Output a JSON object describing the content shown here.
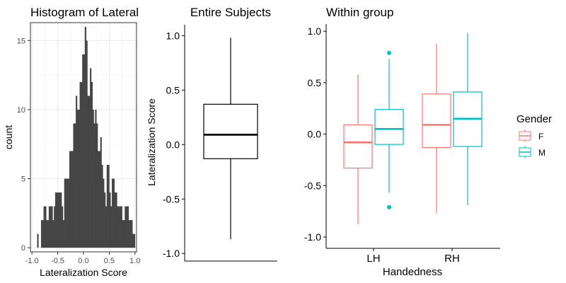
{
  "colors": {
    "histogram_fill": "#454545",
    "female": "#F8766D",
    "male": "#00BFC4",
    "axis": "#000000",
    "grid_major": "#EBEBEB",
    "grid_minor": "#F5F5F5"
  },
  "chart_data": [
    {
      "type": "bar",
      "subtype": "histogram",
      "title": "Histogram of Lateral",
      "xlabel": "Lateralization Score",
      "ylabel": "count",
      "xlim": [
        -1.03,
        1.03
      ],
      "ylim": [
        -0.3,
        16.3
      ],
      "xticks": [
        -1.0,
        -0.5,
        0.0,
        0.5,
        1.0
      ],
      "xtick_labels": [
        "-1.0",
        "-0.5",
        "0.0",
        "0.5",
        "1.0"
      ],
      "yticks": [
        0,
        5,
        10,
        15
      ],
      "ytick_labels": [
        "0",
        "5",
        "10",
        "15"
      ],
      "grid": true,
      "bins": [
        [
          -0.9,
          -0.875,
          1
        ],
        [
          -0.825,
          -0.8,
          2
        ],
        [
          -0.8,
          -0.775,
          2
        ],
        [
          -0.775,
          -0.75,
          3
        ],
        [
          -0.75,
          -0.725,
          3
        ],
        [
          -0.725,
          -0.7,
          2
        ],
        [
          -0.7,
          -0.675,
          2
        ],
        [
          -0.675,
          -0.65,
          3
        ],
        [
          -0.65,
          -0.625,
          3
        ],
        [
          -0.625,
          -0.6,
          3
        ],
        [
          -0.6,
          -0.575,
          2
        ],
        [
          -0.575,
          -0.55,
          3
        ],
        [
          -0.55,
          -0.525,
          4
        ],
        [
          -0.525,
          -0.5,
          4
        ],
        [
          -0.5,
          -0.475,
          4
        ],
        [
          -0.475,
          -0.45,
          4
        ],
        [
          -0.45,
          -0.425,
          4
        ],
        [
          -0.425,
          -0.4,
          3
        ],
        [
          -0.4,
          -0.375,
          2
        ],
        [
          -0.375,
          -0.35,
          5
        ],
        [
          -0.35,
          -0.325,
          5
        ],
        [
          -0.325,
          -0.3,
          5
        ],
        [
          -0.3,
          -0.275,
          5
        ],
        [
          -0.275,
          -0.25,
          7
        ],
        [
          -0.25,
          -0.225,
          7
        ],
        [
          -0.225,
          -0.2,
          7
        ],
        [
          -0.2,
          -0.175,
          9
        ],
        [
          -0.175,
          -0.15,
          9
        ],
        [
          -0.15,
          -0.125,
          11
        ],
        [
          -0.125,
          -0.1,
          10
        ],
        [
          -0.1,
          -0.075,
          10
        ],
        [
          -0.075,
          -0.05,
          12
        ],
        [
          -0.05,
          -0.025,
          12
        ],
        [
          -0.025,
          0.0,
          14
        ],
        [
          0.0,
          0.025,
          14
        ],
        [
          0.025,
          0.05,
          16
        ],
        [
          0.05,
          0.075,
          15
        ],
        [
          0.075,
          0.1,
          11
        ],
        [
          0.1,
          0.125,
          11
        ],
        [
          0.125,
          0.15,
          13
        ],
        [
          0.15,
          0.175,
          12
        ],
        [
          0.175,
          0.2,
          10
        ],
        [
          0.2,
          0.225,
          9
        ],
        [
          0.225,
          0.25,
          10
        ],
        [
          0.25,
          0.275,
          9
        ],
        [
          0.275,
          0.3,
          7
        ],
        [
          0.3,
          0.325,
          7
        ],
        [
          0.325,
          0.35,
          8
        ],
        [
          0.35,
          0.375,
          6
        ],
        [
          0.375,
          0.4,
          5
        ],
        [
          0.4,
          0.425,
          4
        ],
        [
          0.425,
          0.45,
          3
        ],
        [
          0.45,
          0.475,
          6
        ],
        [
          0.475,
          0.5,
          6
        ],
        [
          0.5,
          0.525,
          4
        ],
        [
          0.525,
          0.55,
          3
        ],
        [
          0.55,
          0.575,
          5
        ],
        [
          0.575,
          0.6,
          5
        ],
        [
          0.6,
          0.625,
          4
        ],
        [
          0.625,
          0.65,
          4
        ],
        [
          0.65,
          0.675,
          3
        ],
        [
          0.675,
          0.7,
          3
        ],
        [
          0.7,
          0.725,
          3
        ],
        [
          0.725,
          0.75,
          3
        ],
        [
          0.75,
          0.775,
          2
        ],
        [
          0.775,
          0.8,
          2
        ],
        [
          0.8,
          0.825,
          3
        ],
        [
          0.825,
          0.85,
          3
        ],
        [
          0.85,
          0.875,
          3
        ],
        [
          0.875,
          0.9,
          2
        ],
        [
          0.9,
          0.925,
          2
        ],
        [
          0.925,
          0.95,
          2
        ],
        [
          0.95,
          0.975,
          1
        ],
        [
          0.975,
          1.0,
          1
        ]
      ]
    },
    {
      "type": "boxplot",
      "title": "Entire Subjects",
      "xlabel": "",
      "ylabel": "Lateralization Score",
      "ylim": [
        -1.07,
        1.1
      ],
      "yticks": [
        -1.0,
        -0.5,
        0.0,
        0.5,
        1.0
      ],
      "ytick_labels": [
        "-1.0",
        "-0.5",
        "0.0",
        "0.5",
        "1.0"
      ],
      "boxes": [
        {
          "whisker_low": -0.87,
          "q1": -0.13,
          "median": 0.09,
          "q3": 0.37,
          "whisker_high": 0.98
        }
      ]
    },
    {
      "type": "boxplot",
      "title": "Within group",
      "xlabel": "Handedness",
      "ylabel": "",
      "categories": [
        "LH",
        "RH"
      ],
      "ylim": [
        -1.11,
        1.07
      ],
      "yticks": [
        -1.0,
        -0.5,
        0.0,
        0.5,
        1.0
      ],
      "ytick_labels": [
        "-1.0",
        "-0.5",
        "0.0",
        "0.5",
        "1.0"
      ],
      "legend": {
        "title": "Gender",
        "position": "right",
        "labels": [
          "F",
          "M"
        ]
      },
      "series": [
        {
          "name": "F",
          "boxes": [
            {
              "whisker_low": -0.87,
              "q1": -0.33,
              "median": -0.08,
              "q3": 0.09,
              "whisker_high": 0.58,
              "outliers": []
            },
            {
              "whisker_low": -0.77,
              "q1": -0.13,
              "median": 0.09,
              "q3": 0.39,
              "whisker_high": 0.88,
              "outliers": []
            }
          ]
        },
        {
          "name": "M",
          "boxes": [
            {
              "whisker_low": -0.57,
              "q1": -0.1,
              "median": 0.05,
              "q3": 0.24,
              "whisker_high": 0.73,
              "outliers": [
                -0.71,
                0.79
              ]
            },
            {
              "whisker_low": -0.69,
              "q1": -0.12,
              "median": 0.15,
              "q3": 0.41,
              "whisker_high": 0.98,
              "outliers": []
            }
          ]
        }
      ]
    }
  ]
}
